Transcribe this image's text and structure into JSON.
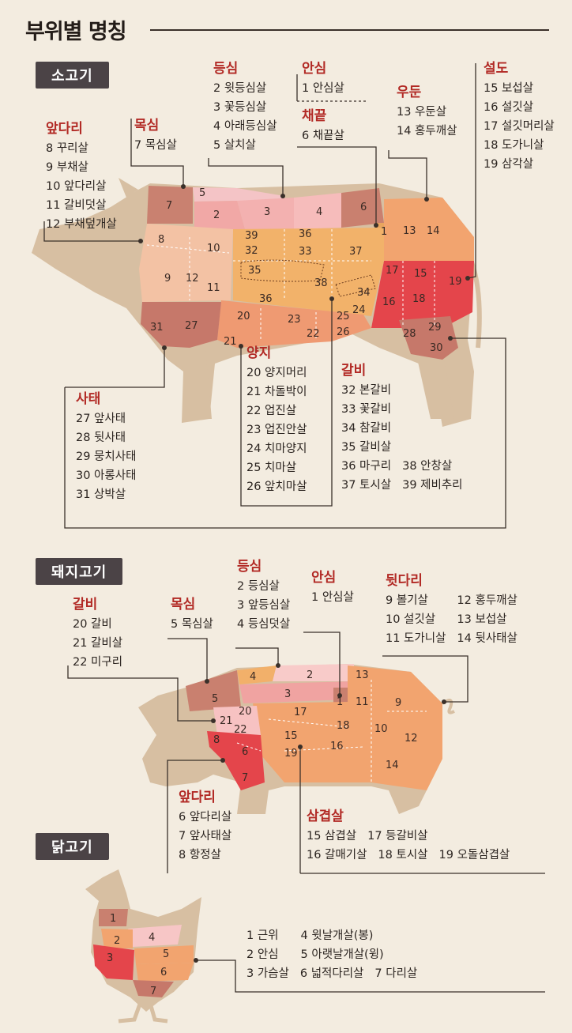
{
  "title": "부위별 명칭",
  "beef": {
    "badge": "소고기",
    "groups": {
      "front_leg": {
        "title": "앞다리",
        "items": [
          "8 꾸리살",
          "9 부채살",
          "10 앞다리살",
          "11 갈비덧살",
          "12 부채덮개살"
        ]
      },
      "neck": {
        "title": "목심",
        "items": [
          "7 목심살"
        ]
      },
      "sirloin": {
        "title": "등심",
        "items": [
          "2 윗등심살",
          "3 꽃등심살",
          "4 아래등심살",
          "5 살치살"
        ]
      },
      "tenderloin": {
        "title": "안심",
        "items": [
          "1 안심살"
        ]
      },
      "chaekkeut": {
        "title": "채끝",
        "items": [
          "6 채끝살"
        ]
      },
      "rump": {
        "title": "우둔",
        "items": [
          "13 우둔살",
          "14 홍두깨살"
        ]
      },
      "round": {
        "title": "설도",
        "items": [
          "15 보섭살",
          "16 설깃살",
          "17 설깃머리살",
          "18 도가니살",
          "19 삼각살"
        ]
      },
      "shank": {
        "title": "사태",
        "items": [
          "27 앞사태",
          "28 뒷사태",
          "29 뭉치사태",
          "30 아롱사태",
          "31 상박살"
        ]
      },
      "brisket": {
        "title": "양지",
        "items": [
          "20 양지머리",
          "21 차돌박이",
          "22 업진살",
          "23 업진안살",
          "24 치마양지",
          "25 치마살",
          "26 앞치마살"
        ]
      },
      "ribs": {
        "title": "갈비",
        "items": [
          "32 본갈비",
          "38 안창살",
          "33 꽃갈비",
          "39 제비추리",
          "34 참갈비",
          "",
          "35 갈비살",
          "",
          "36 마구리",
          "",
          "37 토시살",
          ""
        ]
      }
    },
    "regions": [
      "1",
      "2",
      "3",
      "4",
      "5",
      "6",
      "7",
      "8",
      "9",
      "10",
      "11",
      "12",
      "13",
      "14",
      "15",
      "16",
      "17",
      "18",
      "19",
      "20",
      "21",
      "22",
      "23",
      "24",
      "25",
      "26",
      "27",
      "28",
      "29",
      "30",
      "31",
      "32",
      "33",
      "34",
      "35",
      "36",
      "37",
      "38",
      "39"
    ]
  },
  "pork": {
    "badge": "돼지고기",
    "groups": {
      "ribs": {
        "title": "갈비",
        "items": [
          "20 갈비",
          "21 갈비살",
          "22 미구리"
        ]
      },
      "neck": {
        "title": "목심",
        "items": [
          "5 목심살"
        ]
      },
      "loin": {
        "title": "등심",
        "items": [
          "2 등심살",
          "3 앞등심살",
          "4 등심덧살"
        ]
      },
      "tenderloin": {
        "title": "안심",
        "items": [
          "1 안심살"
        ]
      },
      "hind_leg": {
        "title": "뒷다리",
        "items": [
          "9 볼기살",
          "12 홍두깨살",
          "10 설깃살",
          "13 보섭살",
          "11 도가니살",
          "14 뒷사태살"
        ]
      },
      "front_leg": {
        "title": "앞다리",
        "items": [
          "6 앞다리살",
          "7 앞사태살",
          "8 항정살"
        ]
      },
      "belly": {
        "title": "삼겹살",
        "items": [
          "15 삼겹살",
          "17 등갈비살",
          "16 갈매기살",
          "18 토시살",
          "19 오돌삼겹살"
        ]
      }
    }
  },
  "chicken": {
    "badge": "닭고기",
    "items": [
      "1 근위",
      "4 윗날개살(봉)",
      "2 안심",
      "5 아랫날개살(윙)",
      "3 가슴살",
      "6 넓적다리살",
      "7 다리살"
    ]
  },
  "colors": {
    "title_red": "#b22a25",
    "badge_bg": "#4b4346",
    "background": "#f3ece0",
    "body_tan": "#d8c0a4"
  }
}
